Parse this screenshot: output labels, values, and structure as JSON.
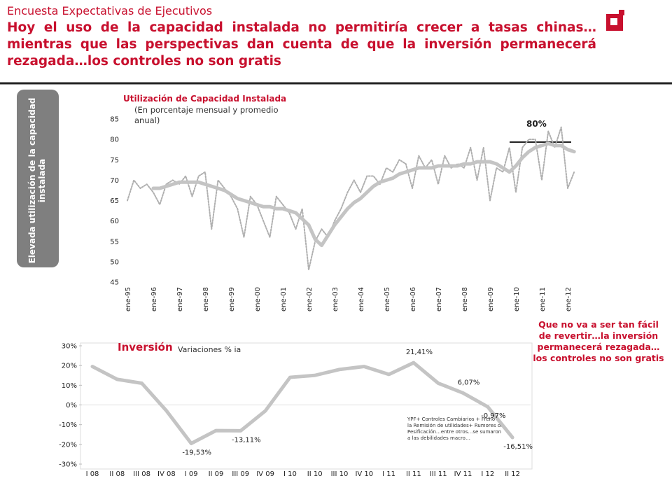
{
  "header": {
    "kicker": "Encuesta Expectativas de Ejecutivos",
    "title": "Hoy el uso de la capacidad instalada no permitiría crecer a tasas chinas…mientras que las perspectivas dan cuenta de que la inversión permanecerá rezagada…los controles no son gratis"
  },
  "side_label": "Elevada utilización de la capacidad instalada",
  "note": "Que no va a ser tan fácil de revertir…la inversión permanecerá rezagada…los controles no son gratis",
  "chart_data": [
    {
      "type": "line",
      "title": "Utilización de Capacidad Instalada",
      "subtitle": "(En porcentaje mensual y promedio anual)",
      "categories": [
        "ene-95",
        null,
        null,
        null,
        "ene-96",
        null,
        null,
        null,
        "ene-97",
        null,
        null,
        null,
        "ene-98",
        null,
        null,
        null,
        "ene-99",
        null,
        null,
        null,
        "ene-00",
        null,
        null,
        null,
        "ene-01",
        null,
        null,
        null,
        "ene-02",
        null,
        null,
        null,
        "ene-03",
        null,
        null,
        null,
        "ene-04",
        null,
        null,
        null,
        "ene-05",
        null,
        null,
        null,
        "ene-06",
        null,
        null,
        null,
        "ene-07",
        null,
        null,
        null,
        "ene-08",
        null,
        null,
        null,
        "ene-09",
        null,
        null,
        null,
        "ene-10",
        null,
        null,
        null,
        "ene-11",
        null,
        null,
        null,
        "ene-12",
        null
      ],
      "ylim": [
        45,
        85
      ],
      "yticks": [
        45,
        50,
        55,
        60,
        65,
        70,
        75,
        80,
        85
      ],
      "series": [
        {
          "color": "#b0b0b0",
          "dash": "dotted",
          "values": [
            65,
            70,
            68,
            69,
            67,
            64,
            69,
            70,
            69,
            71,
            66,
            71,
            72,
            58,
            70,
            68,
            66,
            63,
            56,
            66,
            64,
            60,
            56,
            66,
            64,
            62,
            58,
            63,
            48,
            55,
            58,
            56,
            60,
            63,
            67,
            70,
            67,
            71,
            71,
            69,
            73,
            72,
            75,
            74,
            68,
            76,
            73,
            75,
            69,
            76,
            73,
            74,
            73,
            78,
            70,
            78,
            65,
            73,
            72,
            78,
            67,
            78,
            80,
            80,
            70,
            82,
            78,
            83,
            68,
            72
          ]
        },
        {
          "color": "#c4c4c4",
          "dash": "solid",
          "values": [
            null,
            null,
            null,
            null,
            68,
            68,
            68.5,
            69,
            69.5,
            69.5,
            69.5,
            69.5,
            69,
            68.5,
            68,
            67.5,
            66.5,
            65.5,
            65,
            64.5,
            64,
            63.5,
            63.5,
            63,
            63,
            62.5,
            62,
            60.5,
            59,
            55.5,
            54,
            56.5,
            59,
            61,
            63,
            64.5,
            65.5,
            67,
            68.5,
            69.5,
            70,
            70.5,
            71.5,
            72,
            72.5,
            73,
            73,
            73,
            73.5,
            73.5,
            73.5,
            73.5,
            74,
            74,
            74.5,
            74.5,
            74.5,
            74,
            73,
            72,
            73.5,
            75.5,
            77,
            78,
            78.5,
            79,
            78.5,
            78.5,
            77.5,
            77
          ]
        }
      ],
      "annotation": "80%"
    },
    {
      "type": "line",
      "title": "Inversión",
      "subtitle": "Variaciones % ia",
      "categories": [
        "I 08",
        "II 08",
        "III 08",
        "IV 08",
        "I 09",
        "II 09",
        "III 09",
        "IV 09",
        "I 10",
        "II 10",
        "III 10",
        "IV 10",
        "I 11",
        "II 11",
        "III 11",
        "IV 11",
        "I 12",
        "II 12"
      ],
      "ylim": [
        -30,
        30
      ],
      "yticks": [
        {
          "value": -30,
          "label": "-30%"
        },
        {
          "value": -20,
          "label": "-20%"
        },
        {
          "value": -10,
          "label": "-10%"
        },
        {
          "value": 0,
          "label": "0%"
        },
        {
          "value": 10,
          "label": "10%"
        },
        {
          "value": 20,
          "label": "20%"
        },
        {
          "value": 30,
          "label": "30%"
        }
      ],
      "series": [
        {
          "color": "#c4c4c4",
          "dash": "solid",
          "values": [
            19.5,
            13,
            11,
            -3,
            -19.53,
            -13,
            -13.11,
            -3,
            14,
            15,
            18,
            19.5,
            15.5,
            21.41,
            11,
            6.07,
            -0.97,
            -16.51
          ],
          "value_labels": [
            null,
            null,
            null,
            null,
            "-19,53%",
            null,
            "-13,11%",
            null,
            null,
            null,
            null,
            null,
            null,
            "21,41%",
            null,
            "6,07%",
            "-0,97%",
            "-16,51%"
          ]
        }
      ],
      "annotation": "YPF+ Controles Cambiarios + Freno a la Remisión de utilidades+ Rumores de Pesificación…entre otros…se sumaron a las debilidades macro…"
    }
  ]
}
